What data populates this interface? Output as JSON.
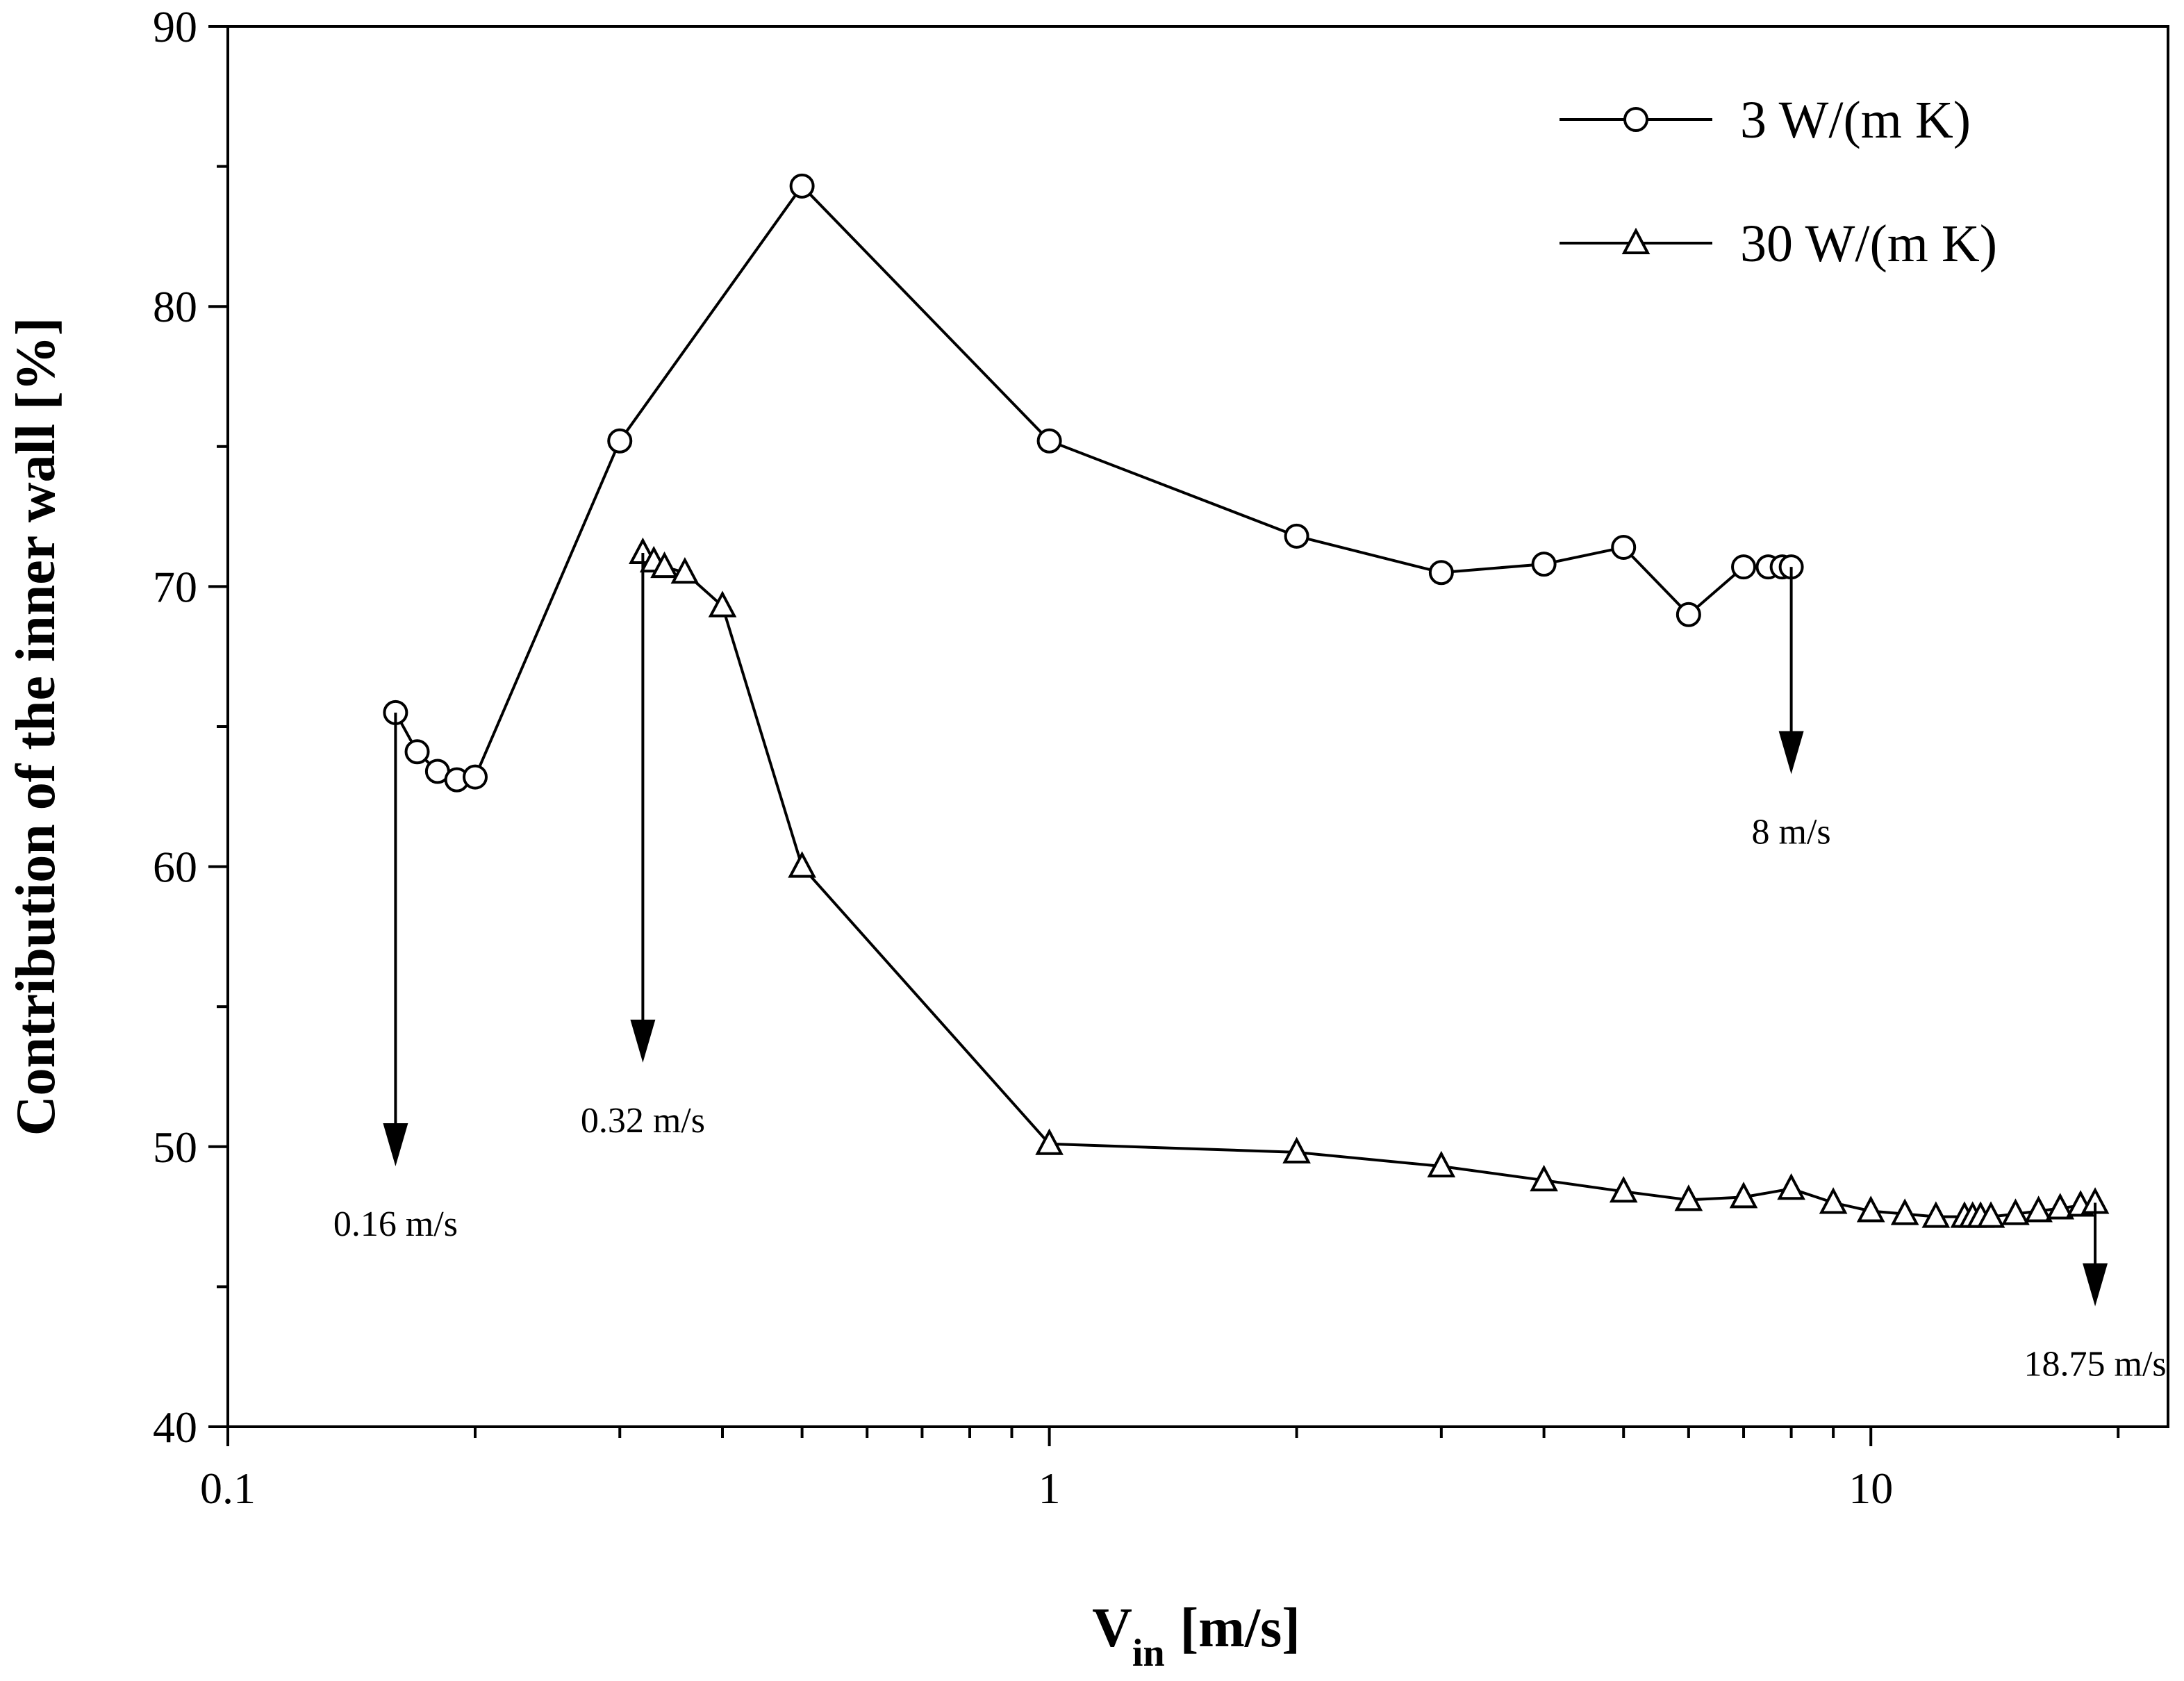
{
  "chart_data": {
    "type": "line",
    "xscale": "log",
    "xlabel_main": "V",
    "xlabel_sub": "in",
    "xlabel_unit": "[m/s]",
    "ylabel": "Contribution of the inner wall [%]",
    "xlim": [
      0.1,
      23
    ],
    "ylim": [
      40,
      90
    ],
    "x_ticks": [
      {
        "value": 0.1,
        "label": "0.1"
      },
      {
        "value": 1,
        "label": "1"
      },
      {
        "value": 10,
        "label": "10"
      }
    ],
    "y_ticks": [
      {
        "value": 40,
        "label": "40"
      },
      {
        "value": 50,
        "label": "50"
      },
      {
        "value": 60,
        "label": "60"
      },
      {
        "value": 70,
        "label": "70"
      },
      {
        "value": 80,
        "label": "80"
      },
      {
        "value": 90,
        "label": "90"
      }
    ],
    "legend_position": "top-right",
    "series": [
      {
        "name": "3 W/(m K)",
        "marker": "circle",
        "x": [
          0.16,
          0.17,
          0.18,
          0.19,
          0.2,
          0.3,
          0.5,
          1,
          2,
          3,
          4,
          5,
          6,
          7,
          7.5,
          7.8,
          8
        ],
        "y": [
          65.5,
          64.1,
          63.4,
          63.1,
          63.2,
          75.2,
          84.3,
          75.2,
          71.8,
          70.5,
          70.8,
          71.4,
          69.0,
          70.7,
          70.7,
          70.7,
          70.7
        ]
      },
      {
        "name": "30 W/(m K)",
        "marker": "triangle",
        "x": [
          0.32,
          0.33,
          0.34,
          0.36,
          0.4,
          0.5,
          1,
          2,
          3,
          4,
          5,
          6,
          7,
          8,
          9,
          10,
          11,
          12,
          13,
          13.3,
          13.6,
          14,
          15,
          16,
          17,
          18,
          18.75
        ],
        "y": [
          71.2,
          70.9,
          70.7,
          70.5,
          69.3,
          60.0,
          50.1,
          49.8,
          49.3,
          48.8,
          48.4,
          48.1,
          48.2,
          48.5,
          48.0,
          47.7,
          47.6,
          47.5,
          47.5,
          47.5,
          47.5,
          47.5,
          47.6,
          47.7,
          47.8,
          47.9,
          48.0
        ]
      }
    ],
    "annotations": [
      {
        "text": "0.16  m/s",
        "x": 0.16,
        "y_from": 65.5,
        "y_to": 49.3
      },
      {
        "text": "0.32  m/s",
        "x": 0.32,
        "y_from": 71.2,
        "y_to": 53.0
      },
      {
        "text": "8 m/s",
        "x": 8,
        "y_from": 70.7,
        "y_to": 63.3
      },
      {
        "text": "18.75  m/s",
        "x": 18.75,
        "y_from": 48.0,
        "y_to": 44.3
      }
    ]
  }
}
